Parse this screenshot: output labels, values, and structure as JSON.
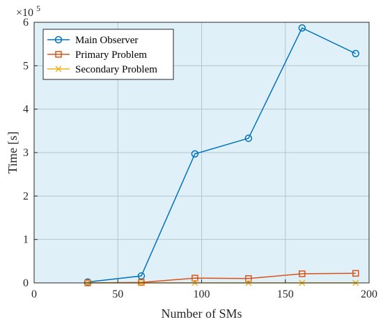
{
  "chart_data": {
    "type": "line",
    "title": "",
    "xlabel": "Number of SMs",
    "ylabel": "Time [s]",
    "y_exponent_label": "×10",
    "y_exponent_power": "5",
    "y_multiplier": 100000,
    "xlim": [
      0,
      200
    ],
    "ylim": [
      0,
      6
    ],
    "xticks": [
      "0",
      "50",
      "100",
      "150",
      "200"
    ],
    "yticks": [
      "0",
      "1",
      "2",
      "3",
      "4",
      "5",
      "6"
    ],
    "grid": true,
    "legend_position": "top-left",
    "background_color": "#dff0f8",
    "series": [
      {
        "name": "Main Observer",
        "color": "#0072bd",
        "marker": "circle",
        "x": [
          32,
          64,
          96,
          128,
          160,
          192
        ],
        "y": [
          0.02,
          0.16,
          2.97,
          3.33,
          5.87,
          5.28
        ]
      },
      {
        "name": "Primary Problem",
        "color": "#d95319",
        "marker": "square",
        "x": [
          32,
          64,
          96,
          128,
          160,
          192
        ],
        "y": [
          0.0,
          0.01,
          0.11,
          0.1,
          0.21,
          0.22
        ]
      },
      {
        "name": "Secondary Problem",
        "color": "#edb120",
        "marker": "x",
        "x": [
          32,
          64,
          96,
          128,
          160,
          192
        ],
        "y": [
          0.0,
          0.0,
          0.0,
          0.0,
          0.0,
          0.0
        ]
      }
    ]
  }
}
